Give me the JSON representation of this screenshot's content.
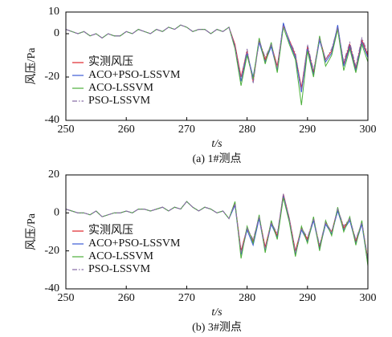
{
  "chart_data": [
    {
      "type": "line",
      "caption": "(a) 1#测点",
      "xlabel": "t/s",
      "ylabel": "风压/Pa",
      "x": [
        250,
        251,
        252,
        253,
        254,
        255,
        256,
        257,
        258,
        259,
        260,
        261,
        262,
        263,
        264,
        265,
        266,
        267,
        268,
        269,
        270,
        271,
        272,
        273,
        274,
        275,
        276,
        277,
        278,
        279,
        280,
        281,
        282,
        283,
        284,
        285,
        286,
        287,
        288,
        289,
        290,
        291,
        292,
        293,
        294,
        295,
        296,
        297,
        298,
        299,
        300
      ],
      "xlim": [
        250,
        300
      ],
      "xticks": [
        250,
        260,
        270,
        280,
        290,
        300
      ],
      "ylim": [
        -40,
        10
      ],
      "yticks": [
        -40,
        -20,
        0,
        10
      ],
      "legend": "left",
      "series": [
        {
          "name": "实测风压",
          "color": "#e0262a",
          "line_style": "solid",
          "values": [
            2,
            1,
            0,
            1,
            -1,
            0,
            -2,
            0,
            -1,
            -1,
            1,
            0,
            2,
            1,
            0,
            2,
            1,
            3,
            2,
            4,
            3,
            1,
            2,
            2,
            0,
            2,
            1,
            3,
            -5,
            -20,
            -8,
            -22,
            -3,
            -12,
            -5,
            -15,
            4,
            -3,
            -10,
            -25,
            -6,
            -18,
            -2,
            -12,
            -8,
            3,
            -14,
            -5,
            -16,
            -3,
            -10
          ]
        },
        {
          "name": "ACO+PSO-LSSVM",
          "color": "#3b5bd6",
          "line_style": "solid",
          "values": [
            2,
            1,
            0,
            1,
            -1,
            0,
            -2,
            0,
            -1,
            -1,
            1,
            0,
            2,
            1,
            0,
            2,
            1,
            3,
            2,
            4,
            3,
            1,
            2,
            2,
            0,
            2,
            1,
            3,
            -6,
            -22,
            -9,
            -20,
            -4,
            -13,
            -6,
            -17,
            5,
            -4,
            -11,
            -27,
            -7,
            -19,
            -3,
            -13,
            -9,
            4,
            -15,
            -6,
            -17,
            -4,
            -11
          ]
        },
        {
          "name": "ACO-LSSVM",
          "color": "#4caf3a",
          "line_style": "solid",
          "values": [
            2,
            1,
            0,
            1,
            -1,
            0,
            -2,
            0,
            -1,
            -1,
            1,
            0,
            2,
            1,
            0,
            2,
            1,
            3,
            2,
            4,
            3,
            1,
            2,
            2,
            0,
            2,
            1,
            3,
            -7,
            -24,
            -10,
            -21,
            -2,
            -14,
            -4,
            -18,
            3,
            -5,
            -12,
            -33,
            -8,
            -20,
            -1,
            -15,
            -10,
            2,
            -17,
            -7,
            -18,
            -5,
            -13
          ]
        },
        {
          "name": "PSO-LSSVM",
          "color": "#8a6fa8",
          "line_style": "dashdot",
          "values": [
            2,
            1,
            0,
            1,
            -1,
            0,
            -2,
            0,
            -1,
            -1,
            1,
            0,
            2,
            1,
            0,
            2,
            1,
            3,
            2,
            4,
            3,
            1,
            2,
            2,
            0,
            2,
            1,
            3,
            -6,
            -21,
            -7,
            -23,
            -3,
            -11,
            -5,
            -16,
            4,
            -3,
            -9,
            -26,
            -5,
            -17,
            -2,
            -12,
            -7,
            3,
            -13,
            -4,
            -15,
            -2,
            -9
          ]
        }
      ]
    },
    {
      "type": "line",
      "caption": "(b) 3#测点",
      "xlabel": "t/s",
      "ylabel": "风压/Pa",
      "x": [
        250,
        251,
        252,
        253,
        254,
        255,
        256,
        257,
        258,
        259,
        260,
        261,
        262,
        263,
        264,
        265,
        266,
        267,
        268,
        269,
        270,
        271,
        272,
        273,
        274,
        275,
        276,
        277,
        278,
        279,
        280,
        281,
        282,
        283,
        284,
        285,
        286,
        287,
        288,
        289,
        290,
        291,
        292,
        293,
        294,
        295,
        296,
        297,
        298,
        299,
        300
      ],
      "xlim": [
        250,
        300
      ],
      "xticks": [
        250,
        260,
        270,
        280,
        290,
        300
      ],
      "ylim": [
        -40,
        20
      ],
      "yticks": [
        -40,
        -20,
        0,
        20
      ],
      "legend": "left",
      "series": [
        {
          "name": "实测风压",
          "color": "#e0262a",
          "line_style": "solid",
          "values": [
            2,
            1,
            0,
            0,
            -1,
            1,
            -2,
            -1,
            0,
            0,
            1,
            0,
            2,
            2,
            1,
            2,
            3,
            1,
            3,
            2,
            6,
            3,
            1,
            3,
            2,
            0,
            1,
            -3,
            5,
            -20,
            -8,
            -15,
            -2,
            -18,
            -5,
            -12,
            10,
            -3,
            -20,
            -8,
            -14,
            -3,
            -18,
            -5,
            -10,
            2,
            -8,
            -3,
            -15,
            -5,
            -25
          ]
        },
        {
          "name": "ACO+PSO-LSSVM",
          "color": "#3b5bd6",
          "line_style": "solid",
          "values": [
            2,
            1,
            0,
            0,
            -1,
            1,
            -2,
            -1,
            0,
            0,
            1,
            0,
            2,
            2,
            1,
            2,
            3,
            1,
            3,
            2,
            6,
            3,
            1,
            3,
            2,
            0,
            1,
            -3,
            4,
            -22,
            -9,
            -17,
            -3,
            -20,
            -6,
            -13,
            9,
            -4,
            -22,
            -9,
            -15,
            -4,
            -19,
            -6,
            -11,
            1,
            -9,
            -4,
            -16,
            -6,
            -27
          ]
        },
        {
          "name": "ACO-LSSVM",
          "color": "#4caf3a",
          "line_style": "solid",
          "values": [
            2,
            1,
            0,
            0,
            -1,
            1,
            -2,
            -1,
            0,
            0,
            1,
            0,
            2,
            2,
            1,
            2,
            3,
            1,
            3,
            2,
            6,
            3,
            1,
            3,
            2,
            0,
            1,
            -3,
            6,
            -24,
            -7,
            -16,
            -1,
            -21,
            -4,
            -14,
            8,
            -5,
            -23,
            -7,
            -16,
            -2,
            -20,
            -4,
            -12,
            3,
            -10,
            -2,
            -17,
            -4,
            -28
          ]
        },
        {
          "name": "PSO-LSSVM",
          "color": "#8a6fa8",
          "line_style": "dashdot",
          "values": [
            2,
            1,
            0,
            0,
            -1,
            1,
            -2,
            -1,
            0,
            0,
            1,
            0,
            2,
            2,
            1,
            2,
            3,
            1,
            3,
            2,
            6,
            3,
            1,
            3,
            2,
            0,
            1,
            -3,
            5,
            -21,
            -8,
            -14,
            -2,
            -19,
            -5,
            -11,
            10,
            -3,
            -21,
            -8,
            -13,
            -3,
            -17,
            -5,
            -10,
            2,
            -7,
            -3,
            -14,
            -5,
            -24
          ]
        }
      ]
    }
  ]
}
